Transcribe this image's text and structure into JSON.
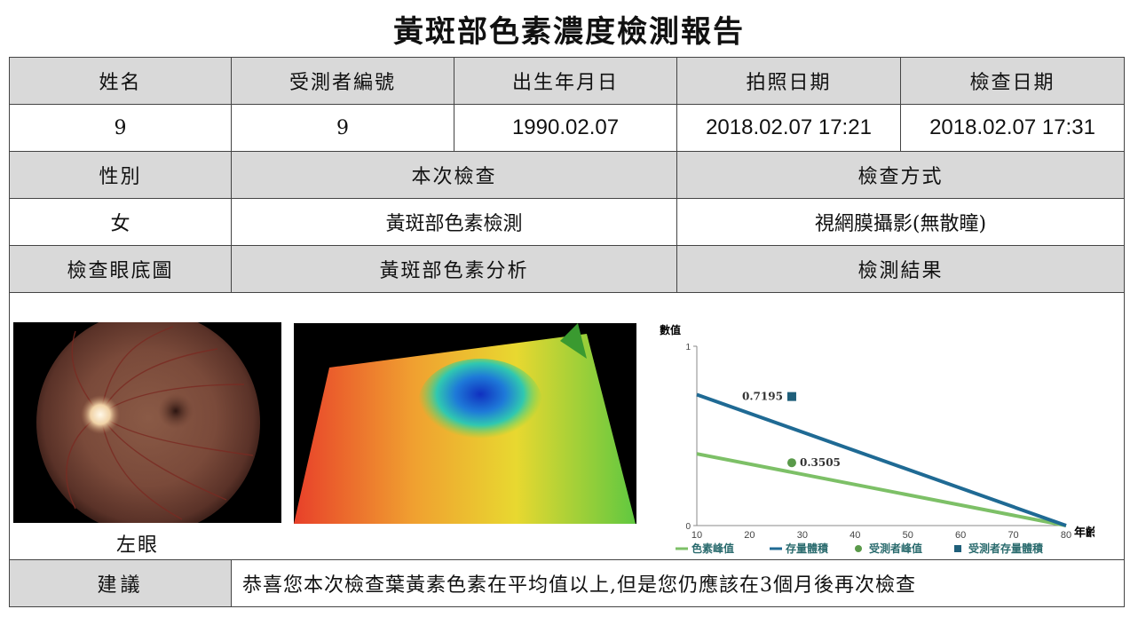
{
  "title": "黃斑部色素濃度檢測報告",
  "headers_row1": [
    "姓名",
    "受測者編號",
    "出生年月日",
    "拍照日期",
    "檢查日期"
  ],
  "values_row1": [
    "9",
    "9",
    "1990.02.07",
    "2018.02.07 17:21",
    "2018.02.07 17:31"
  ],
  "headers_row2": [
    "性別",
    "本次檢查",
    "檢查方式"
  ],
  "values_row2": [
    "女",
    "黃斑部色素檢測",
    "視網膜攝影(無散瞳)"
  ],
  "headers_row3": [
    "檢查眼底圖",
    "黃斑部色素分析",
    "檢測結果"
  ],
  "eye_label": "左眼",
  "advice": {
    "label": "建議",
    "text": "恭喜您本次檢查葉黃素色素在平均值以上,但是您仍應該在3個月後再次檢查"
  },
  "colors": {
    "header_bg": "#d9d9d9",
    "green": "#7dc067",
    "blue": "#1f6a94",
    "legend_text": "#2a6b6e"
  },
  "chart_data": {
    "type": "line",
    "ylabel": "數值",
    "xlabel": "年齡",
    "xlim": [
      10,
      80
    ],
    "ylim": [
      0,
      1
    ],
    "x_ticks": [
      "10",
      "20",
      "30",
      "40",
      "50",
      "60",
      "70",
      "80"
    ],
    "y_ticks": [
      "0",
      "1"
    ],
    "grid": false,
    "legend_position": "bottom",
    "series": [
      {
        "name": "色素峰值",
        "color": "#7dc067",
        "x": [
          10,
          80
        ],
        "y": [
          0.4,
          0.0
        ]
      },
      {
        "name": "存量體積",
        "color": "#1f6a94",
        "x": [
          10,
          80
        ],
        "y": [
          0.73,
          0.0
        ]
      }
    ],
    "points": [
      {
        "name": "受測者峰值",
        "marker": "circle",
        "color": "#5a9a4a",
        "x": 28,
        "y": 0.3505,
        "label": "0.3505"
      },
      {
        "name": "受測者存量體積",
        "marker": "square",
        "color": "#1f5f7a",
        "x": 28,
        "y": 0.7195,
        "label": "0.7195"
      }
    ]
  }
}
